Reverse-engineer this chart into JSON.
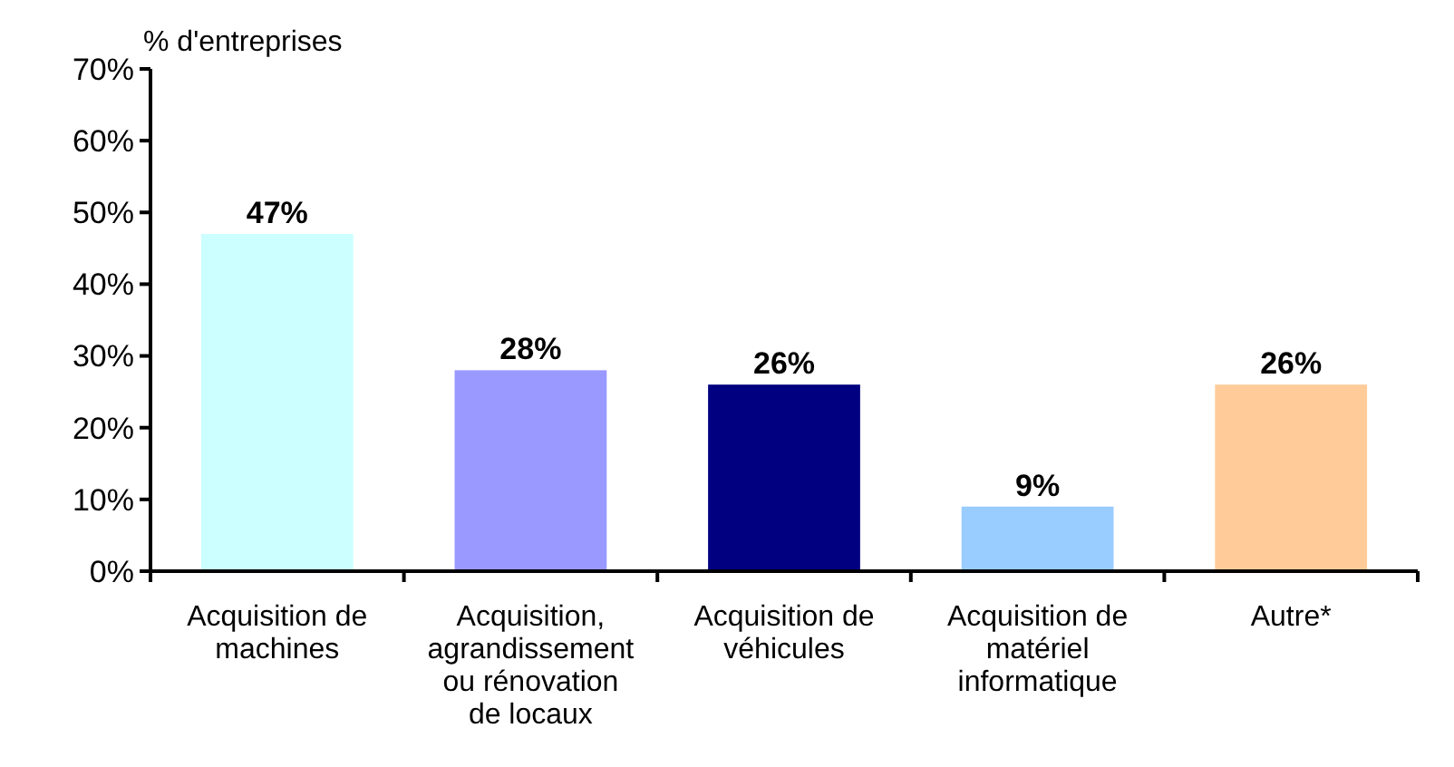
{
  "chart_data": {
    "type": "bar",
    "ylabel": "% d'entreprises",
    "categories": [
      "Acquisition de machines",
      "Acquisition, agrandissement ou rénovation de locaux",
      "Acquisition de véhicules",
      "Acquisition de matériel informatique",
      "Autre*"
    ],
    "values": [
      47,
      28,
      26,
      9,
      26
    ],
    "colors": [
      "#ccffff",
      "#9999ff",
      "#000080",
      "#99ccff",
      "#ffcc99"
    ],
    "value_labels": [
      "47%",
      "28%",
      "26%",
      "9%",
      "26%"
    ],
    "ylim": [
      0,
      70
    ],
    "yticks": [
      {
        "value": 0,
        "label": "0%"
      },
      {
        "value": 10,
        "label": "10%"
      },
      {
        "value": 20,
        "label": "20%"
      },
      {
        "value": 30,
        "label": "30%"
      },
      {
        "value": 40,
        "label": "40%"
      },
      {
        "value": 50,
        "label": "50%"
      },
      {
        "value": 60,
        "label": "60%"
      },
      {
        "value": 70,
        "label": "70%"
      }
    ],
    "grid": false
  }
}
